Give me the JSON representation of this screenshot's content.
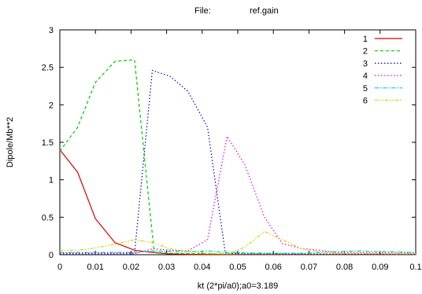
{
  "chart_data": {
    "type": "line",
    "title_label": "File:",
    "title_value": "ref.gain",
    "xlabel": "kt (2*pi/a0);a0=3.189",
    "ylabel": "Dipole/Mb**2",
    "xlim": [
      0,
      0.1
    ],
    "ylim": [
      0,
      3
    ],
    "xticks": [
      "0",
      "0.01",
      "0.02",
      "0.03",
      "0.04",
      "0.05",
      "0.06",
      "0.07",
      "0.08",
      "0.09",
      "0.1"
    ],
    "yticks": [
      "0",
      "0.5",
      "1",
      "1.5",
      "2",
      "2.5",
      "3"
    ],
    "grid": false,
    "legend_position": "top-right",
    "series": [
      {
        "name": "1",
        "color": "#dd0000",
        "dash": "solid",
        "points": [
          [
            0,
            1.4
          ],
          [
            0.005,
            1.1
          ],
          [
            0.01,
            0.48
          ],
          [
            0.0155,
            0.16
          ],
          [
            0.021,
            0.06
          ],
          [
            0.026,
            0.03
          ],
          [
            0.031,
            0.01
          ],
          [
            0.036,
            0.005
          ],
          [
            0.042,
            0.003
          ],
          [
            0.047,
            0.002
          ],
          [
            0.1,
            0.002
          ]
        ]
      },
      {
        "name": "2",
        "color": "#00cc00",
        "dash": "dash",
        "points": [
          [
            0,
            1.38
          ],
          [
            0.005,
            1.7
          ],
          [
            0.01,
            2.3
          ],
          [
            0.0155,
            2.58
          ],
          [
            0.021,
            2.6
          ],
          [
            0.0265,
            0.03
          ],
          [
            0.031,
            0.02
          ],
          [
            0.036,
            0.015
          ],
          [
            0.042,
            0.01
          ],
          [
            0.047,
            0.008
          ],
          [
            0.1,
            0.005
          ]
        ]
      },
      {
        "name": "3",
        "color": "#0000cc",
        "dash": "dot",
        "points": [
          [
            0,
            0.02
          ],
          [
            0.01,
            0.02
          ],
          [
            0.021,
            0.02
          ],
          [
            0.026,
            2.46
          ],
          [
            0.031,
            2.38
          ],
          [
            0.036,
            2.18
          ],
          [
            0.0415,
            1.7
          ],
          [
            0.0465,
            0.02
          ],
          [
            0.052,
            0.01
          ],
          [
            0.1,
            0.005
          ]
        ]
      },
      {
        "name": "4",
        "color": "#ee00ee",
        "dash": "dot",
        "points": [
          [
            0,
            0.01
          ],
          [
            0.021,
            0.01
          ],
          [
            0.026,
            0.08
          ],
          [
            0.031,
            0.06
          ],
          [
            0.036,
            0.05
          ],
          [
            0.0415,
            0.2
          ],
          [
            0.047,
            1.58
          ],
          [
            0.052,
            1.2
          ],
          [
            0.0575,
            0.5
          ],
          [
            0.0625,
            0.15
          ],
          [
            0.068,
            0.08
          ],
          [
            0.073,
            0.06
          ],
          [
            0.078,
            0.03
          ],
          [
            0.1,
            0.02
          ]
        ]
      },
      {
        "name": "5",
        "color": "#00cccc",
        "dash": "dashdot",
        "points": [
          [
            0,
            0.03
          ],
          [
            0.021,
            0.03
          ],
          [
            0.026,
            0.05
          ],
          [
            0.036,
            0.04
          ],
          [
            0.042,
            0.05
          ],
          [
            0.047,
            0.03
          ],
          [
            0.058,
            0.02
          ],
          [
            0.068,
            0.02
          ],
          [
            0.078,
            0.04
          ],
          [
            0.084,
            0.05
          ],
          [
            0.1,
            0.03
          ]
        ]
      },
      {
        "name": "6",
        "color": "#ddcc00",
        "dash": "dashdotdot",
        "points": [
          [
            0,
            0.06
          ],
          [
            0.005,
            0.06
          ],
          [
            0.01,
            0.09
          ],
          [
            0.0155,
            0.14
          ],
          [
            0.021,
            0.2
          ],
          [
            0.026,
            0.16
          ],
          [
            0.031,
            0.08
          ],
          [
            0.036,
            0.04
          ],
          [
            0.042,
            0.02
          ],
          [
            0.047,
            0.01
          ],
          [
            0.052,
            0.1
          ],
          [
            0.0575,
            0.31
          ],
          [
            0.0625,
            0.2
          ],
          [
            0.068,
            0.08
          ],
          [
            0.073,
            0.04
          ],
          [
            0.078,
            0.02
          ],
          [
            0.1,
            0.01
          ]
        ]
      }
    ]
  }
}
